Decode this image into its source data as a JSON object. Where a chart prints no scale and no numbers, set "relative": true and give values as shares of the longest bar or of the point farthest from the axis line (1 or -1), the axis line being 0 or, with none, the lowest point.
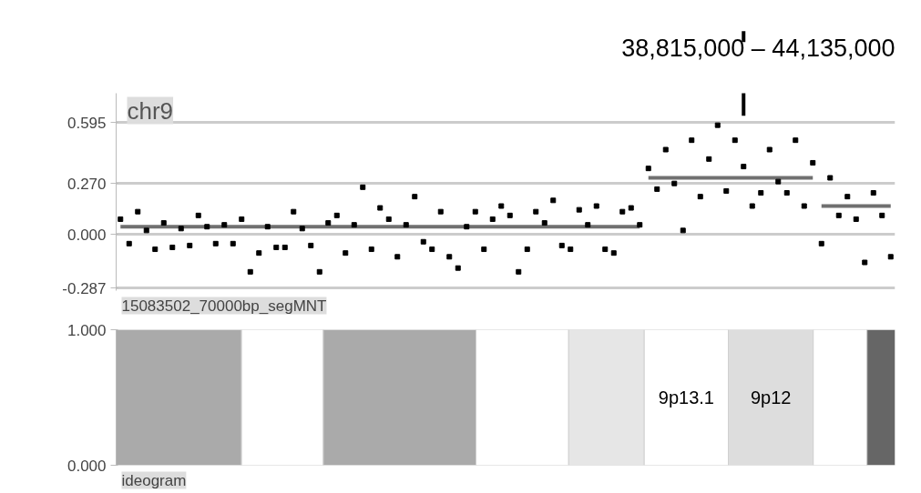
{
  "chart_data": [
    {
      "type": "scatter",
      "title": "chr9",
      "subtitle": "15083502_70000bp_segMNT",
      "annotations": [
        "38,815,000 – 44,135,000"
      ],
      "categories": [
        null,
        null,
        null,
        null,
        null,
        null,
        null,
        null,
        null,
        null,
        null,
        null,
        null,
        null,
        null,
        null,
        null,
        null,
        null,
        null,
        null,
        null,
        null,
        null,
        null,
        null,
        null,
        null,
        null,
        null,
        null,
        null,
        null,
        null,
        null,
        null,
        null,
        null,
        null,
        null,
        null,
        null,
        null,
        null,
        null,
        null,
        null,
        null,
        null,
        null,
        null,
        null,
        null,
        null,
        null,
        null,
        null,
        null,
        null,
        null,
        null,
        null,
        null,
        null,
        null,
        null,
        null,
        null,
        null,
        null,
        null,
        null,
        null,
        null,
        null,
        null,
        null,
        null,
        null,
        null,
        null,
        null,
        null,
        null,
        null,
        null,
        null,
        null,
        null,
        null
      ],
      "ylim": [
        -0.3,
        0.75
      ],
      "yticks": [
        {
          "value": -0.287,
          "label": "-0.287"
        },
        {
          "value": 0,
          "label": "0.000"
        },
        {
          "value": 0.27,
          "label": "0.270"
        },
        {
          "value": 0.595,
          "label": "0.595"
        }
      ],
      "grid": "y",
      "marker": "square",
      "series": [
        {
          "type": "scatter",
          "color": "#000000",
          "values": [
            0.08,
            -0.05,
            0.12,
            0.02,
            -0.08,
            0.06,
            -0.07,
            0.03,
            -0.06,
            0.1,
            0.04,
            -0.05,
            0.05,
            -0.05,
            0.08,
            -0.2,
            -0.1,
            0.04,
            -0.07,
            -0.07,
            0.12,
            0.03,
            -0.06,
            -0.2,
            0.06,
            0.1,
            -0.1,
            0.05,
            0.25,
            -0.08,
            0.14,
            0.08,
            -0.12,
            0.05,
            0.2,
            -0.04,
            -0.08,
            0.12,
            -0.12,
            -0.18,
            0.04,
            0.12,
            -0.08,
            0.08,
            0.15,
            0.1,
            -0.2,
            -0.08,
            0.12,
            0.06,
            0.18,
            -0.06,
            -0.08,
            0.13,
            0.05,
            0.15,
            -0.08,
            -0.1,
            0.12,
            0.14,
            0.05,
            0.35,
            0.24,
            0.45,
            0.27,
            0.02,
            0.5,
            0.2,
            0.4,
            0.58,
            0.23,
            0.5,
            0.36,
            0.15,
            0.22,
            0.45,
            0.28,
            0.22,
            0.5,
            0.15,
            0.38,
            -0.05,
            0.3,
            0.1,
            0.2,
            0.08,
            -0.15,
            0.22,
            0.1,
            -0.12
          ]
        },
        {
          "type": "line",
          "marker": "none",
          "color": "#707070",
          "values": [
            0.04,
            0.04,
            0.04,
            0.04,
            0.04,
            0.04,
            0.04,
            0.04,
            0.04,
            0.04,
            0.04,
            0.04,
            0.04,
            0.04,
            0.04,
            0.04,
            0.04,
            0.04,
            0.04,
            0.04,
            0.04,
            0.04,
            0.04,
            0.04,
            0.04,
            0.04,
            0.04,
            0.04,
            0.04,
            0.04,
            0.04,
            0.04,
            0.04,
            0.04,
            0.04,
            0.04,
            0.04,
            0.04,
            0.04,
            0.04,
            0.04,
            0.04,
            0.04,
            0.04,
            0.04,
            0.04,
            0.04,
            0.04,
            0.04,
            0.04,
            0.04,
            0.04,
            0.04,
            0.04,
            0.04,
            0.04,
            0.04,
            0.04,
            0.04,
            0.04,
            0.04,
            null,
            null,
            null,
            null,
            null,
            null,
            null,
            null,
            null,
            null,
            null,
            null,
            null,
            null,
            null,
            null,
            null,
            null,
            null,
            null,
            null,
            null,
            null,
            null,
            null,
            null,
            null,
            null,
            null
          ]
        },
        {
          "type": "line",
          "marker": "none",
          "color": "#707070",
          "values": [
            null,
            null,
            null,
            null,
            null,
            null,
            null,
            null,
            null,
            null,
            null,
            null,
            null,
            null,
            null,
            null,
            null,
            null,
            null,
            null,
            null,
            null,
            null,
            null,
            null,
            null,
            null,
            null,
            null,
            null,
            null,
            null,
            null,
            null,
            null,
            null,
            null,
            null,
            null,
            null,
            null,
            null,
            null,
            null,
            null,
            null,
            null,
            null,
            null,
            null,
            null,
            null,
            null,
            null,
            null,
            null,
            null,
            null,
            null,
            null,
            null,
            0.3,
            0.3,
            0.3,
            0.3,
            0.3,
            0.3,
            0.3,
            0.3,
            0.3,
            0.3,
            0.3,
            0.3,
            0.3,
            0.3,
            0.3,
            0.3,
            0.3,
            0.3,
            0.3,
            0.3,
            null,
            null,
            null,
            null,
            null,
            null,
            null,
            null,
            null
          ]
        },
        {
          "type": "line",
          "marker": "none",
          "color": "#707070",
          "values": [
            null,
            null,
            null,
            null,
            null,
            null,
            null,
            null,
            null,
            null,
            null,
            null,
            null,
            null,
            null,
            null,
            null,
            null,
            null,
            null,
            null,
            null,
            null,
            null,
            null,
            null,
            null,
            null,
            null,
            null,
            null,
            null,
            null,
            null,
            null,
            null,
            null,
            null,
            null,
            null,
            null,
            null,
            null,
            null,
            null,
            null,
            null,
            null,
            null,
            null,
            null,
            null,
            null,
            null,
            null,
            null,
            null,
            null,
            null,
            null,
            null,
            null,
            null,
            null,
            null,
            null,
            null,
            null,
            null,
            null,
            null,
            null,
            null,
            null,
            null,
            null,
            null,
            null,
            null,
            null,
            null,
            0.15,
            0.15,
            0.15,
            0.15,
            0.15,
            0.15,
            0.15,
            0.15,
            0.15
          ]
        }
      ]
    },
    {
      "type": "bar",
      "title": "ideogram",
      "annotations": [
        "1.000",
        "0.000"
      ],
      "orientation": "horizontal",
      "stacked": true,
      "relative": true,
      "categories": [
        null
      ],
      "series": [
        {
          "color": "#aaaaaa",
          "values": [
            0.161
          ]
        },
        {
          "color": "#ffffff",
          "values": [
            0.105
          ]
        },
        {
          "color": "#aaaaaa",
          "values": [
            0.196
          ]
        },
        {
          "color": "#ffffff",
          "values": [
            0.119
          ]
        },
        {
          "color": "#e6e6e6",
          "values": [
            0.097
          ]
        },
        {
          "name": "9p13.1",
          "color": "#ffffff",
          "values": [
            0.108
          ]
        },
        {
          "name": "9p12",
          "color": "#dddddd",
          "values": [
            0.109
          ]
        },
        {
          "color": "#ffffff",
          "values": [
            0.069
          ]
        },
        {
          "color": "#666666",
          "values": [
            0.036
          ]
        }
      ]
    }
  ]
}
